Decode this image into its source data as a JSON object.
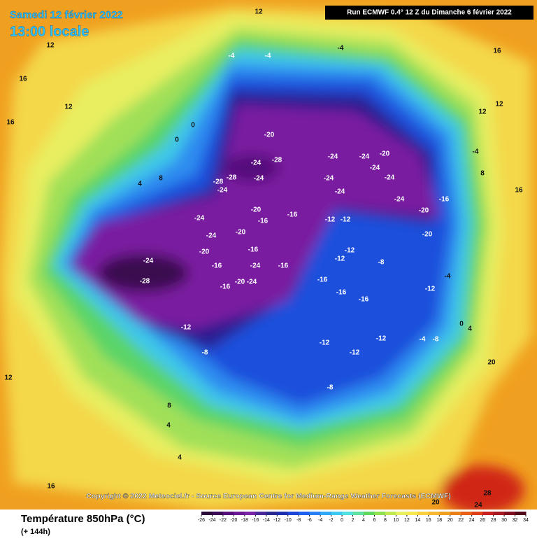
{
  "header": {
    "date": "Samedi 12 février 2022",
    "time": "13:00 locale",
    "run": "Run ECMWF 0.4° 12 Z du Dimanche 6 février 2022"
  },
  "copyright": "Copyright © 2022 Meteociel.fr - Source European Centre for Medium-Range Weather Forecasts (ECMWF)",
  "legend": {
    "title": "Température 850hPa (°C)",
    "lead": "(+ 144h)",
    "ticks": [
      -26,
      -24,
      -22,
      -20,
      -18,
      -16,
      -14,
      -12,
      -10,
      -8,
      -6,
      -4,
      -2,
      0,
      2,
      4,
      6,
      8,
      10,
      12,
      14,
      16,
      18,
      20,
      22,
      24,
      26,
      28,
      30,
      32,
      34
    ],
    "colors": [
      "#2a0838",
      "#3c0a55",
      "#55107a",
      "#6a1a95",
      "#7a25a8",
      "#4a2a9a",
      "#2a2a90",
      "#1e30b0",
      "#1f45d8",
      "#2060f0",
      "#2a80f5",
      "#30a8f5",
      "#3cc8f0",
      "#50e0e0",
      "#5ee0a0",
      "#60d860",
      "#90e050",
      "#c0e850",
      "#e8f060",
      "#f8e850",
      "#f8d040",
      "#f5b830",
      "#f0a020",
      "#ec8018",
      "#e86018",
      "#e04018",
      "#c82020",
      "#a81820",
      "#801020",
      "#500818"
    ]
  },
  "contour_labels": [
    "-28",
    "-24",
    "-24",
    "-24",
    "-20",
    "-20",
    "-16",
    "-16",
    "-20",
    "-24",
    "-24",
    "-16",
    "-16",
    "-16",
    "-20",
    "-16",
    "-28",
    "-24",
    "-28",
    "-24",
    "-28",
    "-24",
    "-20",
    "-24",
    "-24",
    "-24",
    "-24",
    "-20",
    "-24",
    "-24",
    "-24",
    "-20",
    "-20",
    "-16",
    "-12",
    "-12",
    "-12",
    "-12",
    "-8",
    "-12",
    "-16",
    "-16",
    "-16",
    "-12",
    "-8",
    "-12",
    "-12",
    "-12",
    "-4",
    "-8",
    "-8",
    "-4",
    "-4",
    "-4",
    "0",
    "0",
    "4",
    "8",
    "12",
    "16",
    "16",
    "12",
    "12",
    "16",
    "20",
    "24",
    "28",
    "4",
    "8",
    "4",
    "-4",
    "0",
    "4",
    "8",
    "12",
    "16",
    "12",
    "16",
    "20",
    "-4",
    "12"
  ]
}
